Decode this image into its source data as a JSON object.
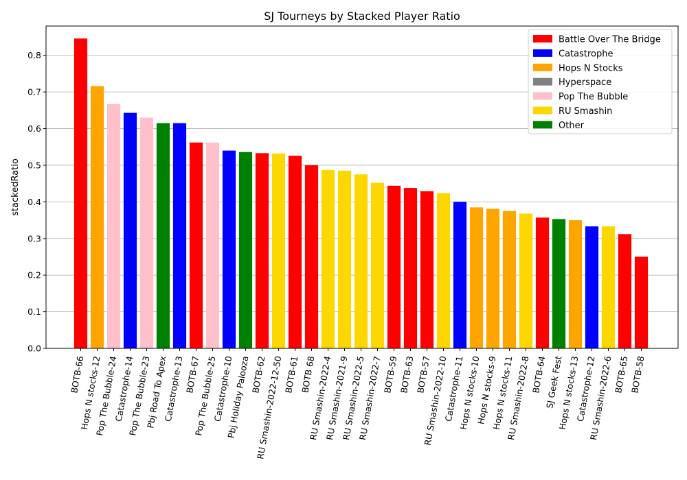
{
  "chart_data": {
    "type": "bar",
    "title": "SJ Tourneys by Stacked Player Ratio",
    "xlabel": "",
    "ylabel": "stackedRatio",
    "ylim": [
      0,
      0.88
    ],
    "yticks": [
      "0.0",
      "0.1",
      "0.2",
      "0.3",
      "0.4",
      "0.5",
      "0.6",
      "0.7",
      "0.8"
    ],
    "grid": "horizontal",
    "legend_position": "top-right",
    "legend": [
      {
        "name": "Battle Over The Bridge",
        "color": "#ff0000"
      },
      {
        "name": "Catastrophe",
        "color": "#0000ff"
      },
      {
        "name": "Hops N Stocks",
        "color": "#ffa500"
      },
      {
        "name": "Hyperspace",
        "color": "#808080"
      },
      {
        "name": "Pop The Bubble",
        "color": "#ffc0cb"
      },
      {
        "name": "RU Smashin",
        "color": "#ffd700"
      },
      {
        "name": "Other",
        "color": "#008000"
      }
    ],
    "bars": [
      {
        "category": "BOTB-66",
        "value": 0.846,
        "series": "Battle Over The Bridge"
      },
      {
        "category": "Hops N stocks-12",
        "value": 0.716,
        "series": "Hops N Stocks"
      },
      {
        "category": "Pop The Bubble-24",
        "value": 0.667,
        "series": "Pop The Bubble"
      },
      {
        "category": "Catastrophe-14",
        "value": 0.643,
        "series": "Catastrophe"
      },
      {
        "category": "Pop The Bubble-23",
        "value": 0.63,
        "series": "Pop The Bubble"
      },
      {
        "category": "Pbj Road To Apex",
        "value": 0.615,
        "series": "Other"
      },
      {
        "category": "Catastrophe-13",
        "value": 0.615,
        "series": "Catastrophe"
      },
      {
        "category": "BOTB-67",
        "value": 0.562,
        "series": "Battle Over The Bridge"
      },
      {
        "category": "Pop The Bubble-25",
        "value": 0.562,
        "series": "Pop The Bubble"
      },
      {
        "category": "Catastrophe-10",
        "value": 0.54,
        "series": "Catastrophe"
      },
      {
        "category": "Pbj Holiday Palooza",
        "value": 0.536,
        "series": "Other"
      },
      {
        "category": "BOTB-62",
        "value": 0.533,
        "series": "Battle Over The Bridge"
      },
      {
        "category": "RU Smashin-2022-12-50",
        "value": 0.532,
        "series": "RU Smashin"
      },
      {
        "category": "BOTB-61",
        "value": 0.526,
        "series": "Battle Over The Bridge"
      },
      {
        "category": "BOTB 68",
        "value": 0.5,
        "series": "Battle Over The Bridge"
      },
      {
        "category": "RU Smashin-2022-4",
        "value": 0.487,
        "series": "RU Smashin"
      },
      {
        "category": "RU Smashin-2021-9",
        "value": 0.485,
        "series": "RU Smashin"
      },
      {
        "category": "RU Smashin-2022-5",
        "value": 0.475,
        "series": "RU Smashin"
      },
      {
        "category": "RU Smashin-2022-7",
        "value": 0.452,
        "series": "RU Smashin"
      },
      {
        "category": "BOTB-59",
        "value": 0.444,
        "series": "Battle Over The Bridge"
      },
      {
        "category": "BOTB-63",
        "value": 0.438,
        "series": "Battle Over The Bridge"
      },
      {
        "category": "BOTB-57",
        "value": 0.429,
        "series": "Battle Over The Bridge"
      },
      {
        "category": "RU Smashin-2022-10",
        "value": 0.424,
        "series": "RU Smashin"
      },
      {
        "category": "Catastrophe-11",
        "value": 0.4,
        "series": "Catastrophe"
      },
      {
        "category": "Hops N stocks-10",
        "value": 0.385,
        "series": "Hops N Stocks"
      },
      {
        "category": "Hops N stocks-9",
        "value": 0.381,
        "series": "Hops N Stocks"
      },
      {
        "category": "Hops N stocks-11",
        "value": 0.375,
        "series": "Hops N Stocks"
      },
      {
        "category": "RU Smashin-2022-8",
        "value": 0.368,
        "series": "RU Smashin"
      },
      {
        "category": "BOTB-64",
        "value": 0.357,
        "series": "Battle Over The Bridge"
      },
      {
        "category": "SJ Geek Fest",
        "value": 0.353,
        "series": "Other"
      },
      {
        "category": "Hops N stocks-13",
        "value": 0.35,
        "series": "Hops N Stocks"
      },
      {
        "category": "Catastrophe-12",
        "value": 0.333,
        "series": "Catastrophe"
      },
      {
        "category": "RU Smashin-2022-6",
        "value": 0.333,
        "series": "RU Smashin"
      },
      {
        "category": "BOTB-65",
        "value": 0.312,
        "series": "Battle Over The Bridge"
      },
      {
        "category": "BOTB-58",
        "value": 0.25,
        "series": "Battle Over The Bridge"
      }
    ]
  }
}
